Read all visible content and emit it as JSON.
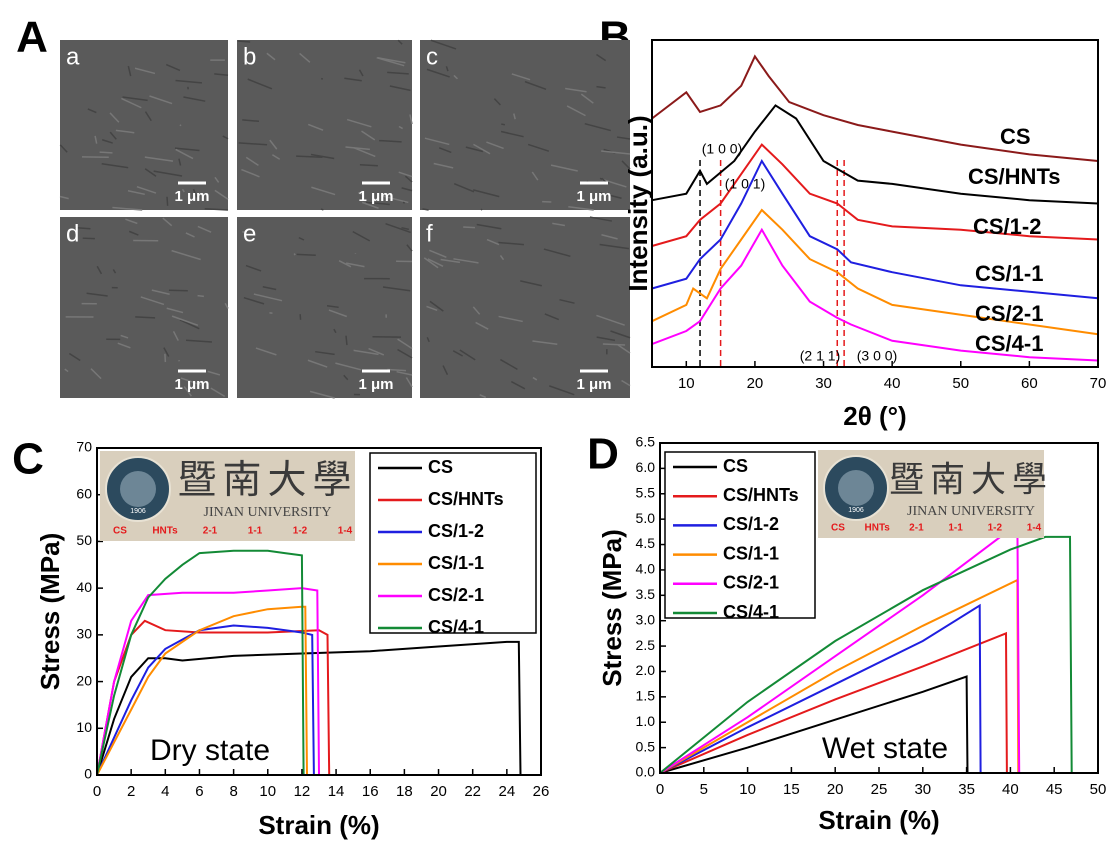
{
  "panel_labels": [
    "A",
    "B",
    "C",
    "D"
  ],
  "sem": {
    "images": [
      "a",
      "b",
      "c",
      "d",
      "e",
      "f"
    ],
    "scale_bar": "1 μm"
  },
  "chart_data": [
    {
      "type": "line",
      "xlabel": "2θ (°)",
      "ylabel": "Intensity (a.u.)",
      "xlim": [
        5,
        70
      ],
      "xticks": [
        10,
        20,
        30,
        40,
        50,
        60,
        70
      ],
      "ylim": [
        0,
        100
      ],
      "annotations": [
        "(1 0 0)",
        "(1 0 1)",
        "(2 1 1)",
        "(3 0 0)"
      ],
      "ref_lines": [
        {
          "x": 12,
          "color": "#000000"
        },
        {
          "x": 15,
          "color": "#e41a1c"
        },
        {
          "x": 32,
          "color": "#e41a1c"
        },
        {
          "x": 33,
          "color": "#e41a1c"
        }
      ],
      "series": [
        {
          "name": "CS",
          "color": "#8b1a1a",
          "x": [
            5,
            10,
            12,
            15,
            18,
            20,
            22,
            25,
            30,
            35,
            40,
            50,
            60,
            70
          ],
          "values": [
            76,
            84,
            78,
            80,
            86,
            95,
            89,
            81,
            77,
            74,
            72,
            68,
            65,
            63
          ]
        },
        {
          "name": "CS/HNTs",
          "color": "#000000",
          "x": [
            5,
            10,
            12,
            13,
            17,
            20,
            23,
            26,
            30,
            35,
            40,
            50,
            60,
            70
          ],
          "values": [
            51,
            53,
            60,
            56,
            63,
            72,
            80,
            76,
            63,
            57,
            56,
            53,
            51,
            50
          ]
        },
        {
          "name": "CS/1-2",
          "color": "#e41a1c",
          "x": [
            5,
            10,
            12,
            15,
            18,
            21,
            24,
            28,
            32,
            35,
            40,
            50,
            60,
            70
          ],
          "values": [
            37,
            40,
            45,
            50,
            59,
            68,
            62,
            53,
            50,
            45,
            43,
            42,
            40,
            39
          ]
        },
        {
          "name": "CS/1-1",
          "color": "#1f1fe0",
          "x": [
            5,
            10,
            12,
            15,
            18,
            21,
            24,
            28,
            32,
            34,
            40,
            50,
            60,
            70
          ],
          "values": [
            24,
            27,
            33,
            39,
            50,
            63,
            53,
            40,
            36,
            32,
            29,
            25,
            23,
            21
          ]
        },
        {
          "name": "CS/2-1",
          "color": "#ff8c00",
          "x": [
            5,
            10,
            11,
            13,
            15,
            18,
            21,
            24,
            28,
            32,
            35,
            40,
            50,
            60,
            70
          ],
          "values": [
            14,
            19,
            24,
            21,
            30,
            39,
            48,
            42,
            33,
            29,
            24,
            19,
            16,
            13,
            10
          ]
        },
        {
          "name": "CS/4-1",
          "color": "#ff00ff",
          "x": [
            5,
            10,
            12,
            15,
            18,
            21,
            24,
            28,
            32,
            34,
            40,
            50,
            60,
            70
          ],
          "values": [
            7,
            11,
            14,
            24,
            31,
            42,
            31,
            20,
            15,
            13,
            8,
            5,
            3,
            2
          ]
        }
      ]
    },
    {
      "type": "line",
      "xlabel": "Strain (%)",
      "ylabel": "Stress (MPa)",
      "annotation": "Dry state",
      "xlim": [
        0,
        26
      ],
      "xticks": [
        0,
        2,
        4,
        6,
        8,
        10,
        12,
        14,
        16,
        18,
        20,
        22,
        24,
        26
      ],
      "ylim": [
        0,
        70
      ],
      "yticks": [
        0,
        10,
        20,
        30,
        40,
        50,
        60,
        70
      ],
      "inset": {
        "title": "暨南大學",
        "subtitle": "JINAN UNIVERSITY",
        "seal_year": "1906",
        "labels": [
          "CS",
          "HNTs",
          "2-1",
          "1-1",
          "1-2",
          "1-4"
        ]
      },
      "series": [
        {
          "name": "CS",
          "color": "#000000",
          "x": [
            0,
            1,
            2,
            3,
            4,
            5,
            8,
            12,
            16,
            20,
            24,
            24.7,
            24.8
          ],
          "values": [
            0,
            12,
            21,
            25,
            25,
            24.5,
            25.5,
            26,
            26.5,
            27.5,
            28.5,
            28.5,
            0
          ]
        },
        {
          "name": "CS/HNTs",
          "color": "#e41a1c",
          "x": [
            0,
            1,
            2,
            2.8,
            4,
            6,
            10,
            13,
            13.5,
            13.6
          ],
          "values": [
            0,
            20,
            30,
            33,
            31,
            30.5,
            30.5,
            31,
            30,
            0
          ]
        },
        {
          "name": "CS/1-2",
          "color": "#1f1fe0",
          "x": [
            0,
            1,
            2,
            3,
            4,
            6,
            8,
            10,
            12,
            12.6,
            12.7
          ],
          "values": [
            0,
            8,
            16,
            23,
            27,
            31,
            32,
            31.5,
            30.5,
            30,
            0
          ]
        },
        {
          "name": "CS/1-1",
          "color": "#ff8c00",
          "x": [
            0,
            1,
            2,
            3,
            4,
            6,
            8,
            10,
            12,
            12.2,
            12.3
          ],
          "values": [
            0,
            7,
            14,
            21,
            26,
            31,
            34,
            35.5,
            36,
            36,
            0
          ]
        },
        {
          "name": "CS/2-1",
          "color": "#ff00ff",
          "x": [
            0,
            1,
            2,
            3,
            5,
            8,
            10,
            12,
            12.9,
            13
          ],
          "values": [
            0,
            20,
            33,
            38.5,
            39,
            39,
            39.5,
            40,
            39.5,
            0
          ]
        },
        {
          "name": "CS/4-1",
          "color": "#138a36",
          "x": [
            0,
            1,
            2,
            3,
            4,
            5,
            6,
            8,
            10,
            11,
            12,
            12.1
          ],
          "values": [
            0,
            17,
            30,
            38,
            42,
            45,
            47.5,
            48,
            48,
            47.5,
            47,
            0
          ]
        }
      ]
    },
    {
      "type": "line",
      "xlabel": "Strain (%)",
      "ylabel": "Stress (MPa)",
      "annotation": "Wet state",
      "xlim": [
        0,
        50
      ],
      "xticks": [
        0,
        5,
        10,
        15,
        20,
        25,
        30,
        35,
        40,
        45,
        50
      ],
      "ylim": [
        0,
        6.5
      ],
      "yticks": [
        {
          "value": 0,
          "label": "0.0"
        },
        0.5,
        {
          "value": 1,
          "label": "1.0"
        },
        1.5,
        {
          "value": 2,
          "label": "2.0"
        },
        2.5,
        {
          "value": 3,
          "label": "3.0"
        },
        3.5,
        {
          "value": 4,
          "label": "4.0"
        },
        4.5,
        {
          "value": 5,
          "label": "5.0"
        },
        5.5,
        {
          "value": 6,
          "label": "6.0"
        },
        6.5
      ],
      "inset": {
        "title": "暨南大學",
        "subtitle": "JINAN UNIVERSITY",
        "seal_year": "1906",
        "labels": [
          "CS",
          "HNTs",
          "2-1",
          "1-1",
          "1-2",
          "1-4"
        ]
      },
      "series": [
        {
          "name": "CS",
          "color": "#000000",
          "x": [
            0,
            10,
            20,
            30,
            35,
            35.1
          ],
          "values": [
            0,
            0.5,
            1.05,
            1.6,
            1.9,
            0
          ]
        },
        {
          "name": "CS/HNTs",
          "color": "#e41a1c",
          "x": [
            0,
            10,
            20,
            30,
            39.5,
            39.6
          ],
          "values": [
            0,
            0.75,
            1.45,
            2.1,
            2.75,
            0
          ]
        },
        {
          "name": "CS/1-2",
          "color": "#1f1fe0",
          "x": [
            0,
            10,
            20,
            30,
            36.5,
            36.6
          ],
          "values": [
            0,
            0.9,
            1.75,
            2.6,
            3.3,
            0
          ]
        },
        {
          "name": "CS/1-1",
          "color": "#ff8c00",
          "x": [
            0,
            10,
            20,
            30,
            40.8,
            40.9
          ],
          "values": [
            0,
            1.0,
            2.0,
            2.9,
            3.8,
            0
          ]
        },
        {
          "name": "CS/2-1",
          "color": "#ff00ff",
          "x": [
            0,
            10,
            20,
            30,
            40,
            40.8,
            41
          ],
          "values": [
            0,
            1.1,
            2.3,
            3.5,
            4.8,
            4.85,
            0
          ]
        },
        {
          "name": "CS/4-1",
          "color": "#138a36",
          "x": [
            0,
            10,
            20,
            30,
            40,
            44,
            46.8,
            47
          ],
          "values": [
            0,
            1.4,
            2.6,
            3.6,
            4.4,
            4.65,
            4.65,
            0
          ]
        }
      ]
    }
  ]
}
